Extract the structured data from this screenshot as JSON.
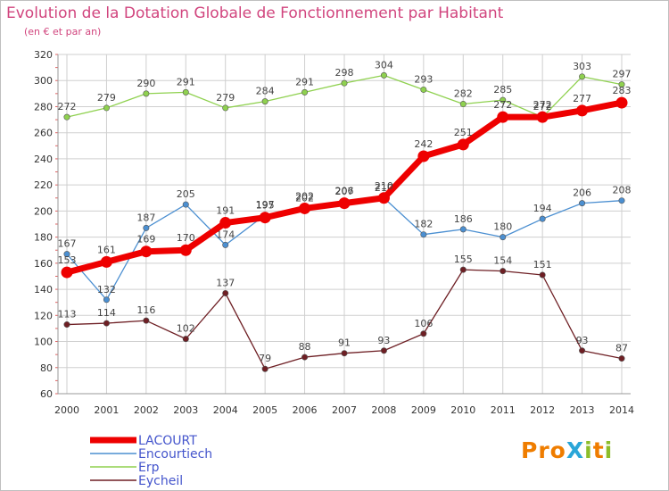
{
  "header": {
    "title": "Evolution de la Dotation Globale de Fonctionnement par Habitant",
    "subtitle": "(en € et par an)"
  },
  "logo_text": "ProXiti",
  "colors": {
    "title": "#d1457e",
    "grid": "#cfcfcf",
    "axis_text": "#333333"
  },
  "chart_data": {
    "type": "line",
    "x": [
      2000,
      2001,
      2002,
      2003,
      2004,
      2005,
      2006,
      2007,
      2008,
      2009,
      2010,
      2011,
      2012,
      2013,
      2014
    ],
    "ylim": [
      60,
      320
    ],
    "yticks": [
      60,
      80,
      100,
      120,
      140,
      160,
      180,
      200,
      220,
      240,
      260,
      280,
      300,
      320
    ],
    "grid": true,
    "legend_placement": "bottom-left",
    "series": [
      {
        "name": "Erp",
        "color": "#8fd14f",
        "values": [
          272,
          279,
          290,
          291,
          279,
          284,
          291,
          298,
          304,
          293,
          282,
          285,
          272,
          303,
          297
        ]
      },
      {
        "name": "Encourtiech",
        "color": "#4b8fd1",
        "values": [
          167,
          132,
          187,
          205,
          174,
          197,
          202,
          207,
          210,
          182,
          186,
          180,
          194,
          206,
          208
        ]
      },
      {
        "name": "Eycheil",
        "color": "#6e1f24",
        "values": [
          113,
          114,
          116,
          102,
          137,
          79,
          88,
          91,
          93,
          106,
          155,
          154,
          151,
          93,
          87
        ]
      },
      {
        "name": "LACOURT",
        "color": "#ee0000",
        "values": [
          153,
          161,
          169,
          170,
          191,
          195,
          202,
          206,
          210,
          242,
          251,
          272,
          272,
          277,
          283
        ]
      }
    ]
  }
}
